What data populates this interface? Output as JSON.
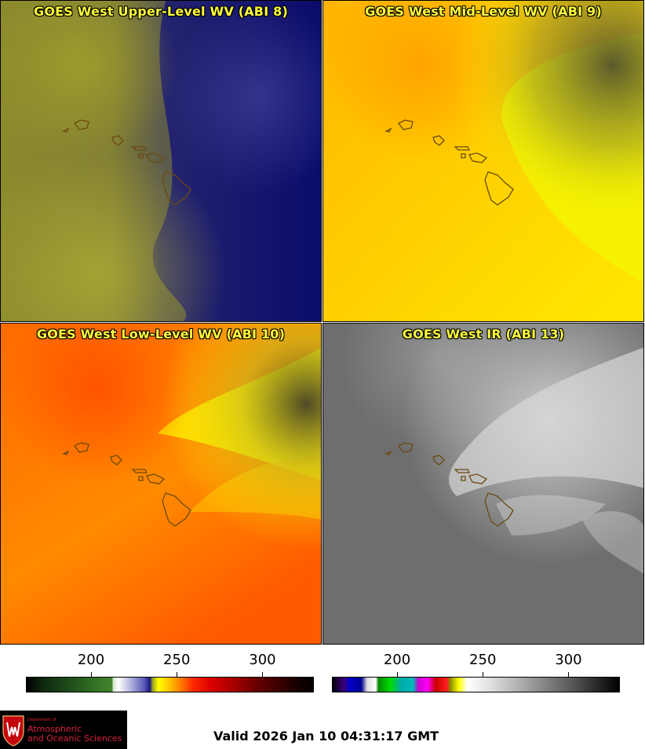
{
  "panels": [
    {
      "title": "GOES West Upper-Level WV (ABI 8)"
    },
    {
      "title": "GOES West Mid-Level WV (ABI 9)"
    },
    {
      "title": "GOES West Low-Level WV (ABI 10)"
    },
    {
      "title": "GOES West IR (ABI 13)"
    }
  ],
  "colorbars": [
    {
      "ticks": [
        "200",
        "250",
        "300"
      ],
      "tick_values": [
        200,
        250,
        300
      ],
      "range": [
        162,
        330
      ]
    },
    {
      "ticks": [
        "200",
        "250",
        "300"
      ],
      "tick_values": [
        200,
        250,
        300
      ],
      "range": [
        162,
        330
      ]
    }
  ],
  "logo": {
    "dept": "Department of",
    "line1": "Atmospheric",
    "line2": "and Oceanic Sciences"
  },
  "valid_time": "Valid 2026 Jan 10 04:31:17 GMT",
  "colors": {
    "title_text": "#ffff3a",
    "coastline": "#6b4a10",
    "logo_red": "#d9233d"
  }
}
